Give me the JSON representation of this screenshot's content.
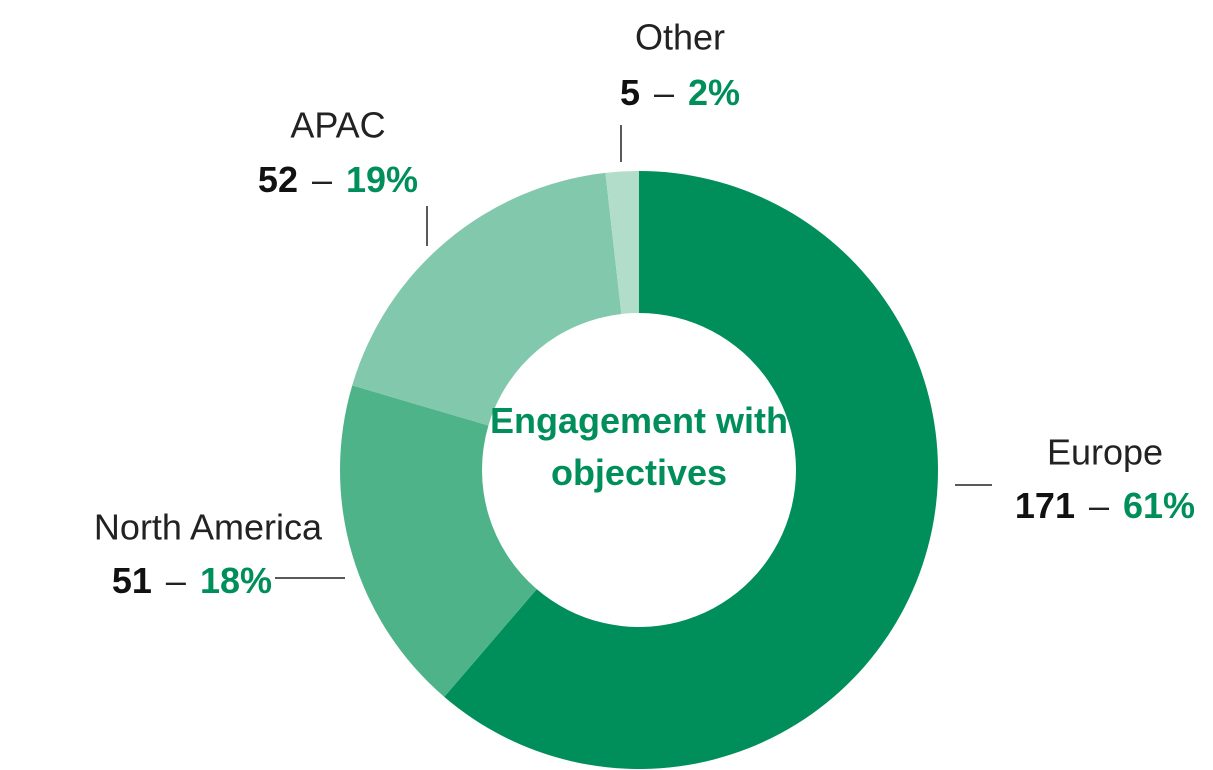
{
  "chart_data": {
    "type": "donut",
    "center_label": "Engagement with objectives",
    "categories": [
      "Europe",
      "North America",
      "APAC",
      "Other"
    ],
    "values": [
      171,
      51,
      52,
      5
    ],
    "percentage_labels": [
      "61%",
      "18%",
      "19%",
      "2%"
    ],
    "separator": "–",
    "colors": [
      "#008f5a",
      "#4fb38a",
      "#82c8ad",
      "#b2ddca"
    ]
  }
}
